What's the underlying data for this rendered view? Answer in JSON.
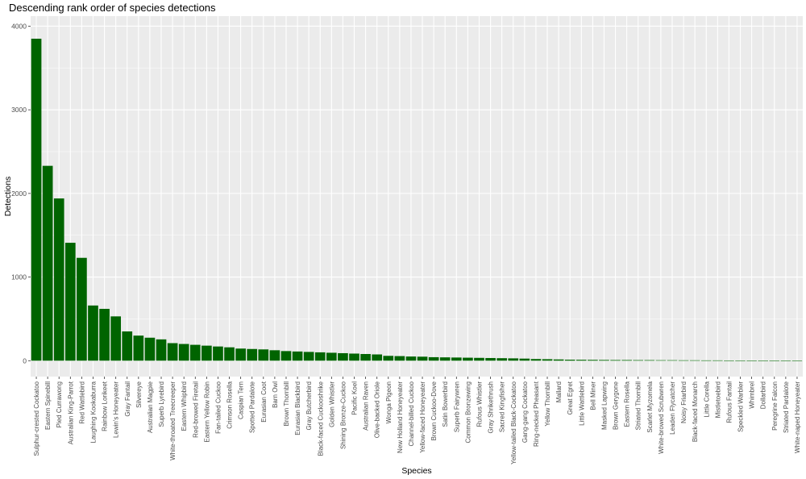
{
  "chart_data": {
    "type": "bar",
    "title": "Descending rank order of species detections",
    "xlabel": "Species",
    "ylabel": "Detections",
    "ylim": [
      -190,
      4120
    ],
    "yticks": [
      0,
      1000,
      2000,
      3000,
      4000
    ],
    "grid": true,
    "legend": "none",
    "bar_color": "#006400",
    "panel_color": "#ebebeb",
    "categories": [
      "Sulphur-crested Cockatoo",
      "Eastern Spinebill",
      "Pied Currawong",
      "Australian King-Parrot",
      "Red Wattlebird",
      "Laughing Kookaburra",
      "Rainbow Lorikeet",
      "Lewin's Honeyeater",
      "Gray Fantail",
      "Silvereye",
      "Australian Magpie",
      "Superb Lyrebird",
      "White-throated Treecreeper",
      "Eastern Whipbird",
      "Red-browed Firetail",
      "Eastern Yellow Robin",
      "Fan-tailed Cuckoo",
      "Crimson Rosella",
      "Caspian Tern",
      "Spotted Pardalote",
      "Eurasian Coot",
      "Barn Owl",
      "Brown Thornbill",
      "Eurasian Blackbird",
      "Gray Butcherbird",
      "Black-faced Cuckooshrike",
      "Golden Whistler",
      "Shining Bronze-Cuckoo",
      "Pacific Koel",
      "Australian Raven",
      "Olive-backed Oriole",
      "Wonga Pigeon",
      "New Holland Honeyeater",
      "Channel-billed Cuckoo",
      "Yellow-faced Honeyeater",
      "Brown Cuckoo-Dove",
      "Satin Bowerbird",
      "Superb Fairywren",
      "Common Bronzewing",
      "Rufous Whistler",
      "Gray Shrikethrush",
      "Sacred Kingfisher",
      "Yellow-tailed Black-Cockatoo",
      "Gang-gang Cockatoo",
      "Ring-necked Pheasant",
      "Yellow Thornbill",
      "Mallard",
      "Great Egret",
      "Little Wattlebird",
      "Bell Miner",
      "Masked Lapwing",
      "Brown Gerygone",
      "Eastern Rosella",
      "Striated Thornbill",
      "Scarlet Myzomela",
      "White-browed Scrubwren",
      "Leaden Flycatcher",
      "Noisy Friarbird",
      "Black-faced Monarch",
      "Little Corella",
      "Mistletoebird",
      "Rufous Fantail",
      "Speckled Warbler",
      "Whimbrel",
      "Dollarbird",
      "Peregrine Falcon",
      "Striated Pardalote",
      "White-naped Honeyeater"
    ],
    "values": [
      3850,
      2330,
      1940,
      1410,
      1230,
      660,
      620,
      530,
      350,
      300,
      275,
      255,
      210,
      200,
      190,
      180,
      170,
      160,
      145,
      140,
      135,
      125,
      115,
      110,
      105,
      100,
      95,
      90,
      85,
      80,
      75,
      58,
      55,
      50,
      48,
      42,
      40,
      38,
      36,
      34,
      32,
      30,
      28,
      25,
      20,
      18,
      15,
      12,
      11,
      10,
      9,
      8,
      8,
      7,
      7,
      6,
      6,
      5,
      5,
      4,
      4,
      3,
      3,
      2,
      1,
      1,
      1,
      1
    ]
  }
}
